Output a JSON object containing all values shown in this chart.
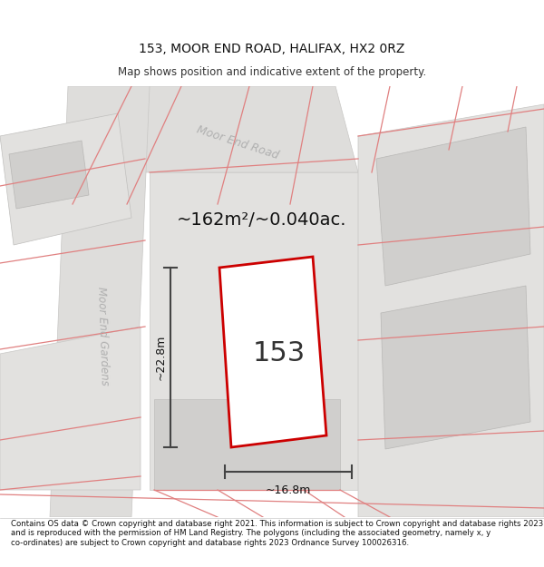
{
  "title": "153, MOOR END ROAD, HALIFAX, HX2 0RZ",
  "subtitle": "Map shows position and indicative extent of the property.",
  "footer": "Contains OS data © Crown copyright and database right 2021. This information is subject to Crown copyright and database rights 2023 and is reproduced with the permission of HM Land Registry. The polygons (including the associated geometry, namely x, y co-ordinates) are subject to Crown copyright and database rights 2023 Ordnance Survey 100026316.",
  "area_label": "~162m²/~0.040ac.",
  "number_label": "153",
  "dim_height": "~22.8m",
  "dim_width": "~16.8m",
  "road_label_1": "Moor End Road",
  "road_label_2": "Moor End Gardens",
  "bg_color": "#ffffff",
  "map_bg_color": "#f0efed",
  "plot_outline_color": "#cc0000",
  "plot_fill_color": "#ffffff",
  "dim_line_color": "#444444",
  "road_label_color": "#b0b0b0",
  "pink_line_color": "#e08080",
  "block_color_light": "#e2e1df",
  "block_color_dark": "#d0cfcd",
  "road_color": "#dedddb"
}
